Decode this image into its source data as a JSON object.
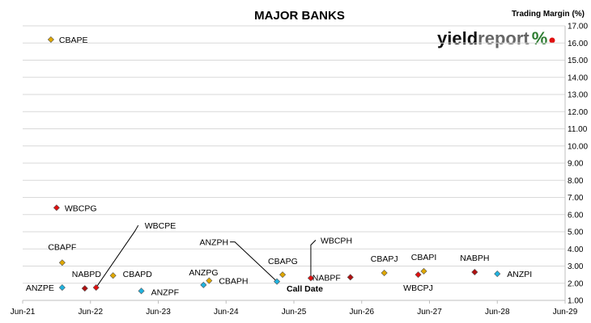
{
  "chart_data": {
    "type": "scatter",
    "title": "MAJOR BANKS",
    "ylabel": "Trading Margin  (%)",
    "xlabel": "",
    "x_ticks": [
      "Jun-21",
      "Jun-22",
      "Jun-23",
      "Jun-24",
      "Jun-25",
      "Jun-26",
      "Jun-27",
      "Jun-28",
      "Jun-29"
    ],
    "y_ticks": [
      "1.00",
      "2.00",
      "3.00",
      "4.00",
      "5.00",
      "6.00",
      "7.00",
      "8.00",
      "9.00",
      "10.00",
      "11.00",
      "12.00",
      "13.00",
      "14.00",
      "15.00",
      "16.00",
      "17.00"
    ],
    "xlim": [
      "2021-06",
      "2029-06"
    ],
    "ylim": [
      1,
      17
    ],
    "grid": "horizontal",
    "y_axis_side": "right",
    "points": [
      {
        "label": "CBAPE",
        "x": "2021-11",
        "y": 16.2,
        "color": "#e0a800",
        "marker": "diamond"
      },
      {
        "label": "WBCPG",
        "x": "2021-12",
        "y": 6.4,
        "color": "#e01010",
        "marker": "diamond"
      },
      {
        "label": "CBAPF",
        "x": "2022-01",
        "y": 3.2,
        "color": "#e0a800",
        "marker": "diamond"
      },
      {
        "label": "ANZPE",
        "x": "2022-01",
        "y": 1.75,
        "color": "#1fb3e0",
        "marker": "diamond"
      },
      {
        "label": "NABPD",
        "x": "2022-05",
        "y": 1.7,
        "color": "#b01010",
        "marker": "diamond"
      },
      {
        "label": "WBCPE",
        "x": "2022-07",
        "y": 1.75,
        "color": "#e01010",
        "marker": "diamond"
      },
      {
        "label": "CBAPD",
        "x": "2022-10",
        "y": 2.45,
        "color": "#e0a800",
        "marker": "diamond"
      },
      {
        "label": "ANZPF",
        "x": "2023-03",
        "y": 1.55,
        "color": "#1fb3e0",
        "marker": "diamond"
      },
      {
        "label": "ANZPG",
        "x": "2024-02",
        "y": 1.9,
        "color": "#1fb3e0",
        "marker": "diamond"
      },
      {
        "label": "CBAPH",
        "x": "2024-03",
        "y": 2.15,
        "color": "#e0a800",
        "marker": "diamond"
      },
      {
        "label": "ANZPH",
        "x": "2025-03",
        "y": 2.1,
        "color": "#1fb3e0",
        "marker": "diamond"
      },
      {
        "label": "CBAPG",
        "x": "2025-04",
        "y": 2.5,
        "color": "#e0a800",
        "marker": "diamond"
      },
      {
        "label": "WBCPH",
        "x": "2025-09",
        "y": 2.3,
        "color": "#e01010",
        "marker": "diamond"
      },
      {
        "label": "NABPF",
        "x": "2026-04",
        "y": 2.35,
        "color": "#b01010",
        "marker": "diamond"
      },
      {
        "label": "CBAPJ",
        "x": "2026-10",
        "y": 2.6,
        "color": "#e0a800",
        "marker": "diamond"
      },
      {
        "label": "WBCPJ",
        "x": "2027-04",
        "y": 2.5,
        "color": "#e01010",
        "marker": "diamond"
      },
      {
        "label": "CBAPI",
        "x": "2027-05",
        "y": 2.7,
        "color": "#e0a800",
        "marker": "diamond"
      },
      {
        "label": "NABPH",
        "x": "2028-02",
        "y": 2.65,
        "color": "#b01010",
        "marker": "diamond"
      },
      {
        "label": "ANZPI",
        "x": "2028-06",
        "y": 2.55,
        "color": "#1fb3e0",
        "marker": "diamond"
      }
    ],
    "annotations": [
      {
        "text": "Call Date",
        "bold": true
      }
    ]
  },
  "logo": {
    "part1": "yield",
    "part2": "report",
    "part3": "%",
    "colors": {
      "part1": "#111111",
      "part2": "#666666",
      "part3": "#2e7d32",
      "dot": "#e01010"
    }
  }
}
